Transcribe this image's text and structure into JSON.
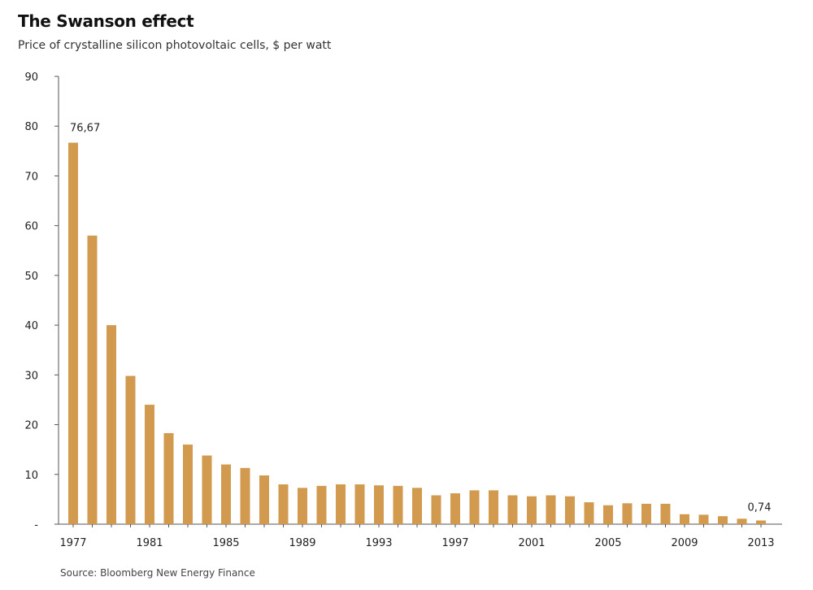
{
  "title": "The Swanson effect",
  "subtitle": "Price of crystalline silicon photovoltaic cells, $ per watt",
  "source": "Source: Bloomberg New Energy Finance",
  "colors": {
    "bar": "#d19a4e",
    "axis": "#555555",
    "grid": "#dddddd"
  },
  "chart_data": {
    "type": "bar",
    "title": "The Swanson effect",
    "subtitle": "Price of crystalline silicon photovoltaic cells, $ per watt",
    "xlabel": "",
    "ylabel": "",
    "ylim": [
      0,
      90
    ],
    "yticks": [
      0,
      10,
      20,
      30,
      40,
      50,
      60,
      70,
      80,
      90
    ],
    "ytick_labels": [
      "-",
      "10",
      "20",
      "30",
      "40",
      "50",
      "60",
      "70",
      "80",
      "90"
    ],
    "grid": false,
    "categories": [
      "1977",
      "1978",
      "1979",
      "1980",
      "1981",
      "1982",
      "1983",
      "1984",
      "1985",
      "1986",
      "1987",
      "1988",
      "1989",
      "1990",
      "1991",
      "1992",
      "1993",
      "1994",
      "1995",
      "1996",
      "1997",
      "1998",
      "1999",
      "2000",
      "2001",
      "2002",
      "2003",
      "2004",
      "2005",
      "2006",
      "2007",
      "2008",
      "2009",
      "2010",
      "2011",
      "2012",
      "2013"
    ],
    "xtick_labels": [
      "1977",
      "1981",
      "1985",
      "1989",
      "1993",
      "1997",
      "2001",
      "2005",
      "2009",
      "2013"
    ],
    "values": [
      76.67,
      58,
      40,
      29.8,
      24,
      18.3,
      16,
      13.8,
      12,
      11.3,
      9.8,
      8,
      7.3,
      7.7,
      8,
      8,
      7.8,
      7.7,
      7.3,
      5.8,
      6.2,
      6.8,
      6.8,
      5.8,
      5.6,
      5.8,
      5.6,
      4.4,
      3.8,
      4.2,
      4.1,
      4.1,
      2,
      1.9,
      1.6,
      1.1,
      0.74
    ],
    "annotations": [
      {
        "category": "1977",
        "text": "76,67"
      },
      {
        "category": "2013",
        "text": "0,74"
      }
    ]
  }
}
